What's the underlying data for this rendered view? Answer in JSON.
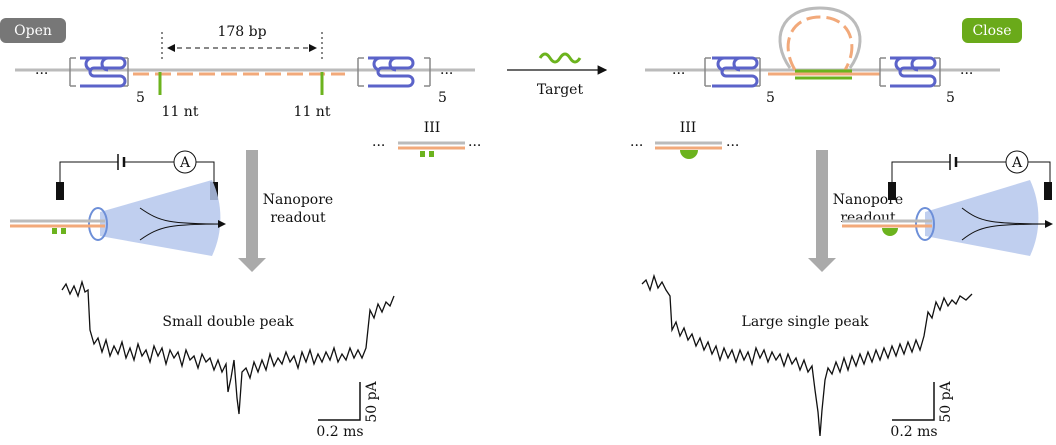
{
  "left": {
    "badge": "Open",
    "spacer": "178 bp",
    "nick": "11 nt",
    "repeat": "5",
    "readout": [
      "Nanopore",
      "readout"
    ],
    "trace_label": "Small double peak",
    "scale": {
      "current": "50 pA",
      "time": "0.2 ms"
    }
  },
  "right": {
    "badge": "Close",
    "repeat": "5",
    "readout": [
      "Nanopore",
      "readout"
    ],
    "trace_label": "Large single peak",
    "scale": {
      "current": "50 pA",
      "time": "0.2 ms"
    }
  },
  "arrow_label": "Target",
  "probe": "III",
  "ellipsis": "···",
  "ammeter": "A"
}
